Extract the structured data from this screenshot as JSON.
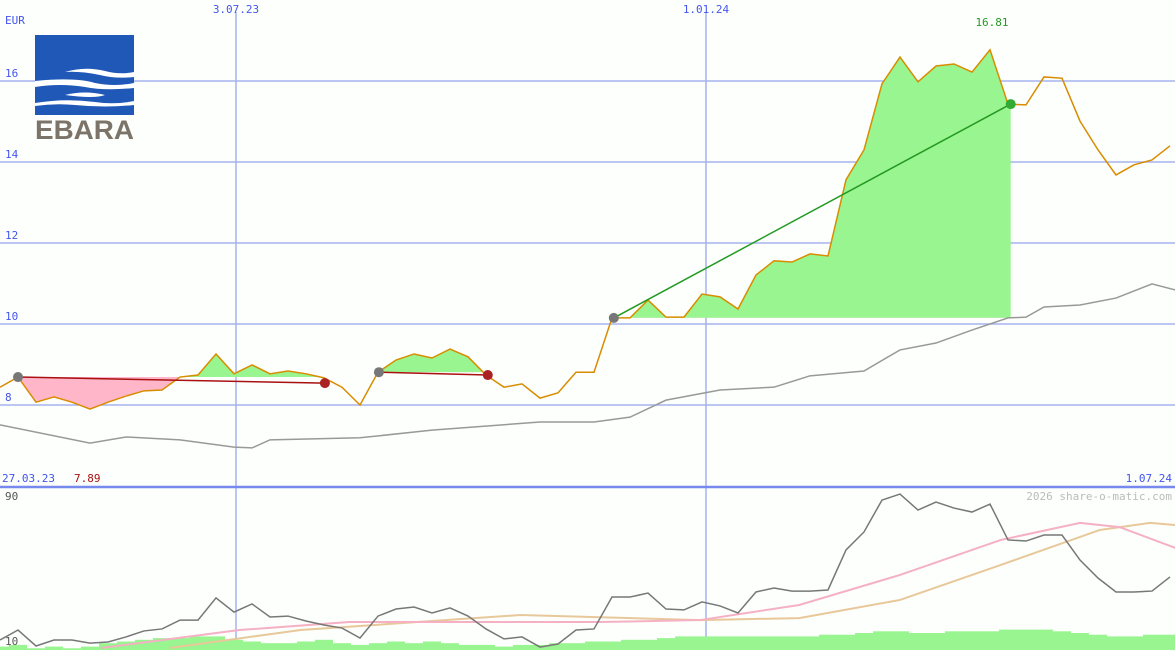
{
  "chart_data": [
    {
      "type": "line",
      "unit_label": "EUR",
      "x_start": "27.03.23",
      "x_end": "1.07.24",
      "x_ticks": [
        "3.07.23",
        "1.01.24"
      ],
      "y_ticks": [
        8,
        10,
        12,
        14,
        16
      ],
      "ylim": [
        7,
        17
      ],
      "interval": "weekly",
      "series": [
        {
          "role": "price",
          "color": "#d98c00",
          "values": [
            8.44,
            8.69,
            8.07,
            8.2,
            8.07,
            7.9,
            8.07,
            8.22,
            8.35,
            8.37,
            8.69,
            8.74,
            9.26,
            8.77,
            8.99,
            8.77,
            8.84,
            8.77,
            8.67,
            8.44,
            8.0,
            8.81,
            9.11,
            9.26,
            9.16,
            9.38,
            9.19,
            8.74,
            8.44,
            8.52,
            8.17,
            8.3,
            8.81,
            8.81,
            10.15,
            10.15,
            10.59,
            10.17,
            10.17,
            10.74,
            10.67,
            10.37,
            11.21,
            11.56,
            11.53,
            11.73,
            11.68,
            13.56,
            14.3,
            15.93,
            16.59,
            15.98,
            16.37,
            16.42,
            16.22,
            16.77,
            15.43,
            15.41,
            16.1,
            16.07,
            15.01,
            14.3,
            13.68,
            13.93,
            14.05,
            14.4
          ]
        },
        {
          "role": "moving-average",
          "color": "#999999",
          "points": [
            [
              0,
              7.51
            ],
            [
              5,
              7.06
            ],
            [
              7,
              7.21
            ],
            [
              10,
              7.14
            ],
            [
              13,
              6.96
            ],
            [
              14,
              6.94
            ],
            [
              15,
              7.14
            ],
            [
              20,
              7.19
            ],
            [
              24,
              7.38
            ],
            [
              30,
              7.58
            ],
            [
              33,
              7.58
            ],
            [
              35,
              7.7
            ],
            [
              37,
              8.12
            ],
            [
              40,
              8.37
            ],
            [
              43,
              8.44
            ],
            [
              45,
              8.72
            ],
            [
              48,
              8.84
            ],
            [
              50,
              9.36
            ],
            [
              52,
              9.53
            ],
            [
              54,
              9.85
            ],
            [
              56,
              10.15
            ],
            [
              57,
              10.17
            ],
            [
              58,
              10.42
            ],
            [
              60,
              10.47
            ],
            [
              62,
              10.64
            ],
            [
              64,
              10.99
            ],
            [
              65.3,
              10.84
            ]
          ]
        }
      ],
      "trades": [
        {
          "entry_week": 1,
          "entry": 8.69,
          "exit_week": 18.05,
          "exit": 8.54,
          "result": "loss"
        },
        {
          "entry_week": 21.05,
          "entry": 8.81,
          "exit_week": 27.1,
          "exit": 8.74,
          "result": "loss"
        },
        {
          "entry_week": 34.1,
          "entry": 10.15,
          "exit_week": 56.15,
          "exit": 15.43,
          "result": "gain"
        }
      ],
      "annotations": {
        "max_label": "16.81",
        "min_label": "7.89"
      },
      "colors": {
        "gain": "#99f58f",
        "loss": "#ffb6c8",
        "gain_line": "#229922",
        "loss_line": "#aa1111",
        "grid": "#a6b4ee",
        "axis_text": "#4455ee"
      }
    },
    {
      "type": "line",
      "y_ticks": [
        10,
        90
      ],
      "ylim": [
        5,
        95
      ],
      "series": [
        {
          "role": "oscillator",
          "color": "#777777",
          "values": [
            10,
            15.5,
            6.7,
            10,
            10,
            8.3,
            8.9,
            11.7,
            15,
            16.1,
            21,
            21,
            33.2,
            25.4,
            29.9,
            22.7,
            23.2,
            20.5,
            18.3,
            16.6,
            11.1,
            23.2,
            27.1,
            28.2,
            24.9,
            27.7,
            23.2,
            16.1,
            10.6,
            11.7,
            6.1,
            7.8,
            15.5,
            16.1,
            33.7,
            33.7,
            35.9,
            27.1,
            26.6,
            31,
            28.8,
            24.9,
            36.5,
            38.7,
            37,
            37,
            37.6,
            59.7,
            69.6,
            87.2,
            90.5,
            81.7,
            86.1,
            82.8,
            80.6,
            85,
            65.2,
            64.6,
            67.9,
            67.9,
            54.1,
            44.2,
            36.5,
            36.5,
            37,
            44.8
          ]
        },
        {
          "role": "signal-fast",
          "color": "#f5b0c4",
          "points": [
            [
              5.6,
              5.6
            ],
            [
              13.3,
              15.5
            ],
            [
              19.4,
              19.9
            ],
            [
              33.3,
              19.9
            ],
            [
              38.9,
              21
            ],
            [
              44.4,
              29.3
            ],
            [
              50,
              45.9
            ],
            [
              55.6,
              65.2
            ],
            [
              60,
              74.6
            ],
            [
              62.2,
              72.3
            ],
            [
              65.3,
              60.8
            ]
          ]
        },
        {
          "role": "signal-slow",
          "color": "#e8c89a",
          "points": [
            [
              9.4,
              5.6
            ],
            [
              16.7,
              15.5
            ],
            [
              28.9,
              23.8
            ],
            [
              38.9,
              21
            ],
            [
              44.4,
              22.1
            ],
            [
              50,
              32.1
            ],
            [
              55.6,
              51.4
            ],
            [
              61.1,
              70.7
            ],
            [
              63.9,
              74.6
            ],
            [
              65.3,
              73.4
            ]
          ]
        }
      ],
      "volume": [
        2,
        3,
        1,
        2,
        1,
        2,
        4,
        5,
        6,
        7,
        7,
        8,
        8,
        6,
        5,
        4,
        4,
        5,
        6,
        4,
        3,
        4,
        5,
        4,
        5,
        4,
        3,
        3,
        2,
        3,
        3,
        4,
        4,
        5,
        5,
        6,
        6,
        7,
        8,
        8,
        8,
        8,
        8,
        8,
        8,
        8,
        9,
        9,
        10,
        11,
        11,
        10,
        10,
        11,
        11,
        11,
        12,
        12,
        12,
        11,
        10,
        9,
        8,
        8,
        9,
        9
      ]
    }
  ],
  "watermark": "2026 share-o-matic.com",
  "logo": {
    "text": "EBARA",
    "color": "#2058b8"
  }
}
